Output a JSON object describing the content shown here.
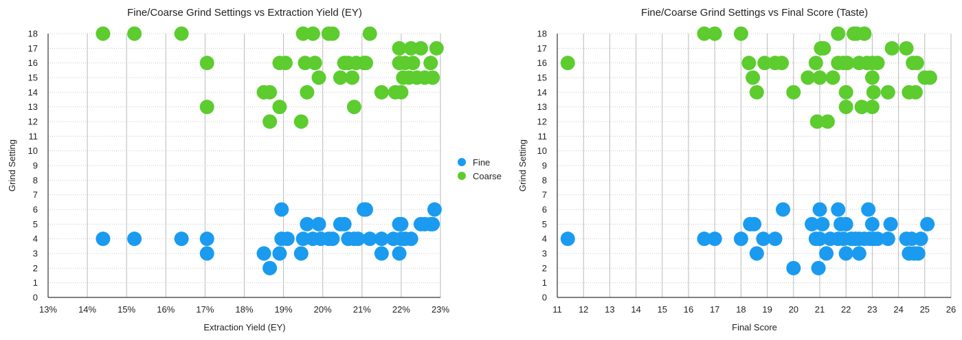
{
  "legend": {
    "items": [
      {
        "label": "Fine",
        "color": "#1a9bf0"
      },
      {
        "label": "Coarse",
        "color": "#5ccc2f"
      }
    ]
  },
  "chart_data": [
    {
      "type": "scatter",
      "title": "Fine/Coarse Grind Settings vs Extraction Yield (EY)",
      "xlabel": "Extraction Yield (EY)",
      "ylabel": "Grind Setting",
      "xlim": [
        13,
        23
      ],
      "ylim": [
        0,
        18
      ],
      "x_ticks": [
        "13%",
        "14%",
        "15%",
        "16%",
        "17%",
        "18%",
        "19%",
        "20%",
        "21%",
        "22%",
        "23%"
      ],
      "y_ticks": [
        "0",
        "1",
        "2",
        "3",
        "4",
        "5",
        "6",
        "7",
        "8",
        "9",
        "10",
        "11",
        "12",
        "13",
        "14",
        "15",
        "16",
        "17",
        "18"
      ],
      "grid": true,
      "legend_position": "right",
      "series": [
        {
          "name": "Fine",
          "color": "#1a9bf0",
          "points": [
            [
              14.4,
              4
            ],
            [
              15.2,
              4
            ],
            [
              16.4,
              4
            ],
            [
              17.05,
              4
            ],
            [
              17.05,
              3
            ],
            [
              18.5,
              3
            ],
            [
              18.65,
              2
            ],
            [
              18.9,
              3
            ],
            [
              18.95,
              6
            ],
            [
              18.95,
              4
            ],
            [
              19.1,
              4
            ],
            [
              19.45,
              3
            ],
            [
              19.5,
              4
            ],
            [
              19.6,
              5
            ],
            [
              19.75,
              4
            ],
            [
              19.9,
              5
            ],
            [
              19.95,
              4
            ],
            [
              20.15,
              4
            ],
            [
              20.25,
              4
            ],
            [
              20.45,
              5
            ],
            [
              20.55,
              5
            ],
            [
              20.65,
              4
            ],
            [
              20.8,
              4
            ],
            [
              20.9,
              4
            ],
            [
              21.05,
              6
            ],
            [
              21.1,
              6
            ],
            [
              21.2,
              4
            ],
            [
              21.5,
              3
            ],
            [
              21.5,
              4
            ],
            [
              21.8,
              4
            ],
            [
              21.95,
              5
            ],
            [
              21.95,
              3
            ],
            [
              22.0,
              5
            ],
            [
              22.0,
              4
            ],
            [
              22.1,
              4
            ],
            [
              22.25,
              4
            ],
            [
              22.5,
              5
            ],
            [
              22.6,
              5
            ],
            [
              22.75,
              5
            ],
            [
              22.85,
              6
            ],
            [
              22.8,
              5
            ]
          ]
        },
        {
          "name": "Coarse",
          "color": "#5ccc2f",
          "points": [
            [
              14.4,
              18
            ],
            [
              15.2,
              18
            ],
            [
              16.4,
              18
            ],
            [
              17.05,
              16
            ],
            [
              17.05,
              13
            ],
            [
              18.5,
              14
            ],
            [
              18.65,
              14
            ],
            [
              18.65,
              12
            ],
            [
              18.9,
              16
            ],
            [
              18.9,
              13
            ],
            [
              19.05,
              16
            ],
            [
              19.45,
              12
            ],
            [
              19.5,
              18
            ],
            [
              19.55,
              16
            ],
            [
              19.6,
              14
            ],
            [
              19.75,
              18
            ],
            [
              19.8,
              16
            ],
            [
              19.9,
              15
            ],
            [
              20.15,
              18
            ],
            [
              20.25,
              18
            ],
            [
              20.45,
              15
            ],
            [
              20.55,
              16
            ],
            [
              20.65,
              16
            ],
            [
              20.75,
              15
            ],
            [
              20.8,
              13
            ],
            [
              20.85,
              16
            ],
            [
              21.05,
              16
            ],
            [
              21.1,
              16
            ],
            [
              21.2,
              18
            ],
            [
              21.5,
              14
            ],
            [
              21.85,
              14
            ],
            [
              22.0,
              14
            ],
            [
              21.95,
              17
            ],
            [
              21.95,
              16
            ],
            [
              22.05,
              15
            ],
            [
              22.1,
              16
            ],
            [
              22.2,
              15
            ],
            [
              22.25,
              17
            ],
            [
              22.3,
              16
            ],
            [
              22.4,
              15
            ],
            [
              22.5,
              17
            ],
            [
              22.6,
              15
            ],
            [
              22.75,
              16
            ],
            [
              22.8,
              15
            ],
            [
              22.9,
              17
            ]
          ]
        }
      ]
    },
    {
      "type": "scatter",
      "title": "Fine/Coarse Grind Settings vs Final Score (Taste)",
      "xlabel": "Final Score",
      "ylabel": "Grind Setting",
      "xlim": [
        11,
        26
      ],
      "ylim": [
        0,
        18
      ],
      "x_ticks": [
        "11",
        "12",
        "13",
        "14",
        "15",
        "16",
        "17",
        "18",
        "19",
        "20",
        "21",
        "22",
        "23",
        "24",
        "25",
        "26"
      ],
      "y_ticks": [
        "0",
        "1",
        "2",
        "3",
        "4",
        "5",
        "6",
        "7",
        "8",
        "9",
        "10",
        "11",
        "12",
        "13",
        "14",
        "15",
        "16",
        "17",
        "18"
      ],
      "grid": true,
      "series": [
        {
          "name": "Fine",
          "color": "#1a9bf0",
          "points": [
            [
              11.4,
              4
            ],
            [
              16.6,
              4
            ],
            [
              17.0,
              4
            ],
            [
              18.0,
              4
            ],
            [
              18.35,
              5
            ],
            [
              18.5,
              5
            ],
            [
              18.6,
              3
            ],
            [
              18.85,
              4
            ],
            [
              19.3,
              4
            ],
            [
              19.6,
              6
            ],
            [
              20.0,
              2
            ],
            [
              20.7,
              5
            ],
            [
              20.85,
              4
            ],
            [
              20.95,
              2
            ],
            [
              21.0,
              6
            ],
            [
              21.0,
              4
            ],
            [
              21.1,
              5
            ],
            [
              21.25,
              3
            ],
            [
              21.4,
              4
            ],
            [
              21.7,
              6
            ],
            [
              21.7,
              4
            ],
            [
              21.8,
              5
            ],
            [
              21.9,
              4
            ],
            [
              22.0,
              5
            ],
            [
              22.0,
              3
            ],
            [
              22.2,
              4
            ],
            [
              22.35,
              4
            ],
            [
              22.5,
              3
            ],
            [
              22.5,
              4
            ],
            [
              22.7,
              4
            ],
            [
              22.85,
              6
            ],
            [
              22.9,
              4
            ],
            [
              23.0,
              5
            ],
            [
              23.05,
              4
            ],
            [
              23.2,
              4
            ],
            [
              23.6,
              4
            ],
            [
              23.7,
              5
            ],
            [
              24.3,
              4
            ],
            [
              24.4,
              3
            ],
            [
              24.5,
              4
            ],
            [
              24.6,
              3
            ],
            [
              24.75,
              3
            ],
            [
              24.85,
              4
            ],
            [
              25.1,
              5
            ]
          ]
        },
        {
          "name": "Coarse",
          "color": "#5ccc2f",
          "points": [
            [
              11.4,
              16
            ],
            [
              16.6,
              18
            ],
            [
              17.0,
              18
            ],
            [
              18.0,
              18
            ],
            [
              18.3,
              16
            ],
            [
              18.45,
              15
            ],
            [
              18.6,
              14
            ],
            [
              18.9,
              16
            ],
            [
              19.3,
              16
            ],
            [
              19.55,
              16
            ],
            [
              20.0,
              14
            ],
            [
              20.55,
              15
            ],
            [
              20.85,
              16
            ],
            [
              20.9,
              12
            ],
            [
              21.0,
              15
            ],
            [
              21.05,
              17
            ],
            [
              21.15,
              17
            ],
            [
              21.3,
              12
            ],
            [
              21.5,
              15
            ],
            [
              21.7,
              18
            ],
            [
              21.7,
              16
            ],
            [
              21.9,
              16
            ],
            [
              22.0,
              14
            ],
            [
              22.0,
              13
            ],
            [
              22.05,
              16
            ],
            [
              22.3,
              18
            ],
            [
              22.4,
              18
            ],
            [
              22.5,
              16
            ],
            [
              22.6,
              13
            ],
            [
              22.7,
              18
            ],
            [
              22.8,
              16
            ],
            [
              23.0,
              16
            ],
            [
              23.0,
              15
            ],
            [
              23.05,
              14
            ],
            [
              23.0,
              13
            ],
            [
              23.2,
              16
            ],
            [
              23.6,
              14
            ],
            [
              23.75,
              17
            ],
            [
              24.3,
              17
            ],
            [
              24.4,
              14
            ],
            [
              24.55,
              16
            ],
            [
              24.65,
              14
            ],
            [
              24.7,
              16
            ],
            [
              25.0,
              15
            ],
            [
              25.2,
              15
            ]
          ]
        }
      ]
    }
  ]
}
